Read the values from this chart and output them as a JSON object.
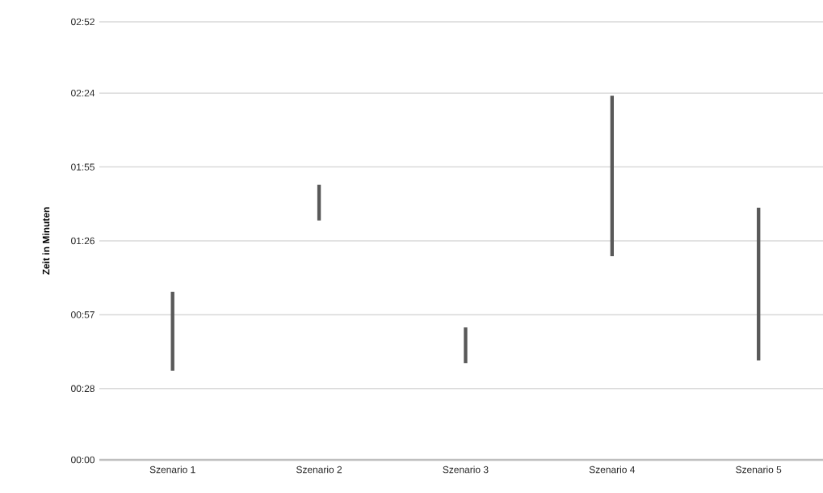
{
  "chart_data": {
    "type": "bar",
    "ylabel": "Zeit in Minuten",
    "categories": [
      "Szenario 1",
      "Szenario 2",
      "Szenario 3",
      "Szenario 4",
      "Szenario 5"
    ],
    "base": [
      35,
      94,
      38,
      80,
      39
    ],
    "values": [
      31,
      14,
      14,
      63,
      60
    ],
    "color": "#595959",
    "ylim": [
      0,
      172
    ],
    "yticks": [
      {
        "value": 0,
        "label": "00:00"
      },
      {
        "value": 28,
        "label": "00:28"
      },
      {
        "value": 57,
        "label": "00:57"
      },
      {
        "value": 86,
        "label": "01:26"
      },
      {
        "value": 115,
        "label": "01:55"
      },
      {
        "value": 144,
        "label": "02:24"
      },
      {
        "value": 172,
        "label": "02:52"
      }
    ],
    "grid": "y"
  }
}
